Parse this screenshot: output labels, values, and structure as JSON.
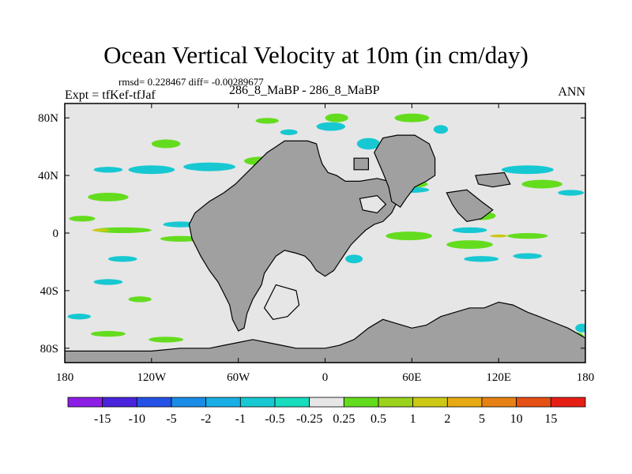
{
  "chart_data": {
    "type": "heatmap",
    "title": "Ocean Vertical Velocity at 10m (in cm/day)",
    "stats_line": "rmsd= 0.228467 diff= -0.00289677",
    "left_label": "Expt = tfKef-tfJaf",
    "center_label": "286_8_MaBP - 286_8_MaBP",
    "right_label": "ANN",
    "xlim": [
      -180,
      180
    ],
    "ylim": [
      -90,
      90
    ],
    "x_ticks": [
      {
        "value": -180,
        "label": "180"
      },
      {
        "value": -120,
        "label": "120W"
      },
      {
        "value": -60,
        "label": "60W"
      },
      {
        "value": 0,
        "label": "0"
      },
      {
        "value": 60,
        "label": "60E"
      },
      {
        "value": 120,
        "label": "120E"
      },
      {
        "value": 180,
        "label": "180"
      }
    ],
    "y_ticks": [
      {
        "value": 80,
        "label": "80N"
      },
      {
        "value": 40,
        "label": "40N"
      },
      {
        "value": 0,
        "label": "0"
      },
      {
        "value": -40,
        "label": "40S"
      },
      {
        "value": -80,
        "label": "80S"
      }
    ],
    "colorbar": {
      "labels": [
        "-15",
        "-10",
        "-5",
        "-2",
        "-1",
        "-0.5",
        "-0.25",
        "0.25",
        "0.5",
        "1",
        "2",
        "5",
        "10",
        "15"
      ],
      "colors": [
        "#8c1ee6",
        "#4a24dc",
        "#2552e6",
        "#1a8ce6",
        "#19afe6",
        "#17c8d2",
        "#17dcbe",
        "#e6e6e6",
        "#64dc1e",
        "#9bd21e",
        "#cdc814",
        "#e6aa14",
        "#e68214",
        "#e65014",
        "#e61e14"
      ]
    },
    "colors": {
      "ocean_background": "#e6e6e6",
      "land": "#a0a0a0",
      "negative": "#17c8d2",
      "positive": "#64dc1e",
      "positive_strong": "#cdc814"
    },
    "land_regions": [
      {
        "name": "antarctica",
        "points": [
          [
            -180,
            -90
          ],
          [
            180,
            -90
          ],
          [
            180,
            -73
          ],
          [
            175,
            -70
          ],
          [
            168,
            -66
          ],
          [
            158,
            -62
          ],
          [
            148,
            -58
          ],
          [
            140,
            -55
          ],
          [
            130,
            -50
          ],
          [
            120,
            -48
          ],
          [
            110,
            -52
          ],
          [
            100,
            -52
          ],
          [
            90,
            -55
          ],
          [
            80,
            -58
          ],
          [
            70,
            -64
          ],
          [
            60,
            -66
          ],
          [
            50,
            -63
          ],
          [
            40,
            -60
          ],
          [
            30,
            -66
          ],
          [
            20,
            -74
          ],
          [
            10,
            -78
          ],
          [
            0,
            -80
          ],
          [
            -10,
            -80
          ],
          [
            -20,
            -80
          ],
          [
            -30,
            -78
          ],
          [
            -40,
            -76
          ],
          [
            -50,
            -74
          ],
          [
            -60,
            -76
          ],
          [
            -70,
            -78
          ],
          [
            -80,
            -80
          ],
          [
            -100,
            -80
          ],
          [
            -120,
            -82
          ],
          [
            -140,
            -82
          ],
          [
            -160,
            -82
          ],
          [
            -180,
            -82
          ]
        ]
      },
      {
        "name": "america",
        "points": [
          [
            -60,
            -68
          ],
          [
            -64,
            -60
          ],
          [
            -66,
            -50
          ],
          [
            -70,
            -42
          ],
          [
            -74,
            -34
          ],
          [
            -80,
            -26
          ],
          [
            -86,
            -16
          ],
          [
            -92,
            -4
          ],
          [
            -94,
            6
          ],
          [
            -90,
            14
          ],
          [
            -80,
            22
          ],
          [
            -70,
            28
          ],
          [
            -62,
            34
          ],
          [
            -56,
            40
          ],
          [
            -50,
            46
          ],
          [
            -44,
            52
          ],
          [
            -40,
            56
          ],
          [
            -34,
            60
          ],
          [
            -28,
            64
          ],
          [
            -20,
            64
          ],
          [
            -12,
            64
          ],
          [
            -6,
            62
          ],
          [
            -4,
            54
          ],
          [
            -2,
            48
          ],
          [
            2,
            42
          ],
          [
            8,
            40
          ],
          [
            14,
            36
          ],
          [
            24,
            36
          ],
          [
            36,
            38
          ],
          [
            44,
            36
          ],
          [
            48,
            30
          ],
          [
            50,
            22
          ],
          [
            46,
            14
          ],
          [
            40,
            8
          ],
          [
            34,
            6
          ],
          [
            28,
            2
          ],
          [
            24,
            -2
          ],
          [
            18,
            -8
          ],
          [
            14,
            -14
          ],
          [
            10,
            -20
          ],
          [
            6,
            -26
          ],
          [
            0,
            -30
          ],
          [
            -6,
            -26
          ],
          [
            -10,
            -20
          ],
          [
            -14,
            -16
          ],
          [
            -20,
            -14
          ],
          [
            -28,
            -12
          ],
          [
            -34,
            -16
          ],
          [
            -38,
            -22
          ],
          [
            -42,
            -28
          ],
          [
            -44,
            -36
          ],
          [
            -50,
            -46
          ],
          [
            -54,
            -56
          ],
          [
            -56,
            -66
          ]
        ]
      },
      {
        "name": "east_land",
        "points": [
          [
            34,
            56
          ],
          [
            40,
            66
          ],
          [
            50,
            68
          ],
          [
            62,
            68
          ],
          [
            72,
            62
          ],
          [
            76,
            52
          ],
          [
            76,
            40
          ],
          [
            70,
            36
          ],
          [
            62,
            32
          ],
          [
            56,
            24
          ],
          [
            52,
            18
          ],
          [
            46,
            22
          ],
          [
            44,
            32
          ],
          [
            40,
            42
          ]
        ]
      },
      {
        "name": "east_islands_a",
        "points": [
          [
            84,
            28
          ],
          [
            98,
            30
          ],
          [
            108,
            22
          ],
          [
            116,
            16
          ],
          [
            108,
            10
          ],
          [
            98,
            8
          ],
          [
            92,
            14
          ],
          [
            88,
            20
          ]
        ]
      },
      {
        "name": "east_islands_b",
        "points": [
          [
            104,
            40
          ],
          [
            124,
            42
          ],
          [
            128,
            34
          ],
          [
            116,
            32
          ],
          [
            106,
            34
          ]
        ]
      },
      {
        "name": "small_island",
        "points": [
          [
            20,
            52
          ],
          [
            30,
            52
          ],
          [
            30,
            44
          ],
          [
            20,
            44
          ]
        ]
      }
    ],
    "coast_details": [
      {
        "name": "lake_south",
        "points": [
          [
            -34,
            -36
          ],
          [
            -20,
            -40
          ],
          [
            -18,
            -50
          ],
          [
            -26,
            -58
          ],
          [
            -36,
            -60
          ],
          [
            -42,
            -52
          ]
        ]
      },
      {
        "name": "lake_north",
        "points": [
          [
            24,
            24
          ],
          [
            36,
            26
          ],
          [
            42,
            20
          ],
          [
            36,
            14
          ],
          [
            26,
            16
          ]
        ]
      }
    ],
    "positive_patches": [
      {
        "lon": -150,
        "lat": 25,
        "rx": 14,
        "ry": 3
      },
      {
        "lon": -168,
        "lat": 10,
        "rx": 9,
        "ry": 2
      },
      {
        "lon": -140,
        "lat": 2,
        "rx": 20,
        "ry": 2
      },
      {
        "lon": -100,
        "lat": -4,
        "rx": 14,
        "ry": 2
      },
      {
        "lon": -60,
        "lat": 14,
        "rx": 9,
        "ry": 2
      },
      {
        "lon": -110,
        "lat": 62,
        "rx": 10,
        "ry": 3
      },
      {
        "lon": -45,
        "lat": 50,
        "rx": 11,
        "ry": 3
      },
      {
        "lon": 8,
        "lat": 80,
        "rx": 8,
        "ry": 3
      },
      {
        "lon": 60,
        "lat": 80,
        "rx": 12,
        "ry": 3
      },
      {
        "lon": -40,
        "lat": 78,
        "rx": 8,
        "ry": 2
      },
      {
        "lon": 55,
        "lat": 34,
        "rx": 16,
        "ry": 3
      },
      {
        "lon": 58,
        "lat": -2,
        "rx": 16,
        "ry": 3
      },
      {
        "lon": 100,
        "lat": -8,
        "rx": 16,
        "ry": 3
      },
      {
        "lon": 140,
        "lat": -2,
        "rx": 14,
        "ry": 2
      },
      {
        "lon": 150,
        "lat": 34,
        "rx": 14,
        "ry": 3
      },
      {
        "lon": 108,
        "lat": 12,
        "rx": 10,
        "ry": 3
      },
      {
        "lon": -128,
        "lat": -46,
        "rx": 8,
        "ry": 2
      },
      {
        "lon": -150,
        "lat": -70,
        "rx": 12,
        "ry": 2
      },
      {
        "lon": -110,
        "lat": -74,
        "rx": 12,
        "ry": 2
      },
      {
        "lon": 174,
        "lat": -72,
        "rx": 5,
        "ry": 3
      }
    ],
    "strong_patches": [
      {
        "lon": -155,
        "lat": 2,
        "rx": 6,
        "ry": 1
      },
      {
        "lon": 120,
        "lat": -2,
        "rx": 6,
        "ry": 1
      },
      {
        "lon": 92,
        "lat": 22,
        "rx": 4,
        "ry": 1
      }
    ],
    "negative_patches": [
      {
        "lon": -120,
        "lat": 44,
        "rx": 16,
        "ry": 3
      },
      {
        "lon": -150,
        "lat": 44,
        "rx": 10,
        "ry": 2
      },
      {
        "lon": -80,
        "lat": 46,
        "rx": 18,
        "ry": 3
      },
      {
        "lon": -20,
        "lat": 44,
        "rx": 16,
        "ry": 3
      },
      {
        "lon": 4,
        "lat": 74,
        "rx": 10,
        "ry": 3
      },
      {
        "lon": -25,
        "lat": 70,
        "rx": 6,
        "ry": 2
      },
      {
        "lon": 30,
        "lat": 62,
        "rx": 8,
        "ry": 4
      },
      {
        "lon": 80,
        "lat": 72,
        "rx": 5,
        "ry": 3
      },
      {
        "lon": 140,
        "lat": 44,
        "rx": 18,
        "ry": 3
      },
      {
        "lon": 170,
        "lat": 28,
        "rx": 9,
        "ry": 2
      },
      {
        "lon": -100,
        "lat": 6,
        "rx": 12,
        "ry": 2
      },
      {
        "lon": -140,
        "lat": -18,
        "rx": 10,
        "ry": 2
      },
      {
        "lon": 100,
        "lat": 2,
        "rx": 12,
        "ry": 2
      },
      {
        "lon": 108,
        "lat": -18,
        "rx": 12,
        "ry": 2
      },
      {
        "lon": 140,
        "lat": -16,
        "rx": 10,
        "ry": 2
      },
      {
        "lon": -150,
        "lat": -34,
        "rx": 10,
        "ry": 2
      },
      {
        "lon": 20,
        "lat": -18,
        "rx": 6,
        "ry": 3
      },
      {
        "lon": 60,
        "lat": 30,
        "rx": 12,
        "ry": 2
      },
      {
        "lon": -170,
        "lat": -58,
        "rx": 8,
        "ry": 2
      },
      {
        "lon": 178,
        "lat": -66,
        "rx": 5,
        "ry": 3
      }
    ]
  }
}
